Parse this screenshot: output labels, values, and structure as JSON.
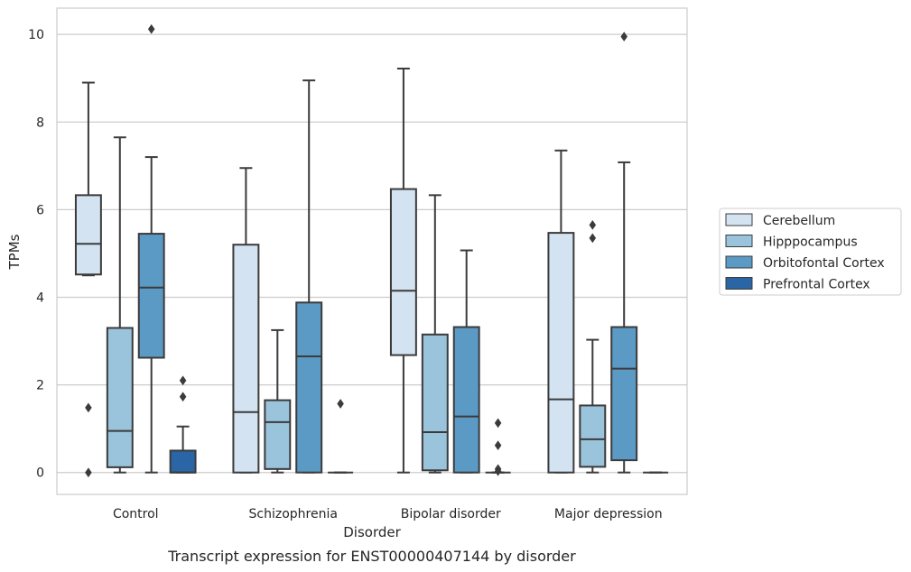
{
  "caption": "Transcript expression for ENST00000407144 by disorder",
  "chart_data": {
    "type": "boxplot",
    "xlabel": "Disorder",
    "ylabel": "TPMs",
    "categories": [
      "Control",
      "Schizophrenia",
      "Bipolar disorder",
      "Major depression"
    ],
    "ylim": [
      -0.5,
      10.6
    ],
    "yticks": [
      0,
      2,
      4,
      6,
      8,
      10
    ],
    "grid": "horizontal",
    "legend": {
      "placement": "right"
    },
    "series": [
      {
        "name": "Cerebellum",
        "color": "#d4e3f2",
        "boxes": [
          {
            "whislo": 4.5,
            "q1": 4.52,
            "med": 5.22,
            "q3": 6.33,
            "whishi": 8.9,
            "fliers": [
              1.48,
              0.0
            ]
          },
          {
            "whislo": 0.0,
            "q1": 0.0,
            "med": 1.38,
            "q3": 5.2,
            "whishi": 6.95,
            "fliers": []
          },
          {
            "whislo": 0.0,
            "q1": 2.68,
            "med": 4.15,
            "q3": 6.47,
            "whishi": 9.22,
            "fliers": []
          },
          {
            "whislo": 0.0,
            "q1": 0.0,
            "med": 1.67,
            "q3": 5.47,
            "whishi": 7.35,
            "fliers": []
          }
        ]
      },
      {
        "name": "Hipppocampus",
        "color": "#9ac3dc",
        "boxes": [
          {
            "whislo": 0.0,
            "q1": 0.12,
            "med": 0.95,
            "q3": 3.3,
            "whishi": 7.65,
            "fliers": []
          },
          {
            "whislo": 0.0,
            "q1": 0.08,
            "med": 1.15,
            "q3": 1.65,
            "whishi": 3.25,
            "fliers": []
          },
          {
            "whislo": 0.0,
            "q1": 0.05,
            "med": 0.92,
            "q3": 3.15,
            "whishi": 6.33,
            "fliers": []
          },
          {
            "whislo": 0.0,
            "q1": 0.13,
            "med": 0.76,
            "q3": 1.53,
            "whishi": 3.03,
            "fliers": [
              5.65,
              5.35
            ]
          }
        ]
      },
      {
        "name": "Orbitofontal Cortex",
        "color": "#5b9ac5",
        "boxes": [
          {
            "whislo": 0.0,
            "q1": 2.62,
            "med": 4.22,
            "q3": 5.45,
            "whishi": 7.2,
            "fliers": [
              10.12
            ]
          },
          {
            "whislo": 0.0,
            "q1": 0.0,
            "med": 2.65,
            "q3": 3.88,
            "whishi": 8.95,
            "fliers": []
          },
          {
            "whislo": 0.0,
            "q1": 0.0,
            "med": 1.28,
            "q3": 3.32,
            "whishi": 5.07,
            "fliers": []
          },
          {
            "whislo": 0.0,
            "q1": 0.28,
            "med": 2.37,
            "q3": 3.32,
            "whishi": 7.08,
            "fliers": [
              9.95
            ]
          }
        ]
      },
      {
        "name": "Prefrontal Cortex",
        "color": "#2a66a5",
        "boxes": [
          {
            "whislo": 0.0,
            "q1": 0.0,
            "med": 0.0,
            "q3": 0.5,
            "whishi": 1.05,
            "fliers": [
              2.1,
              1.73
            ]
          },
          {
            "whislo": 0.0,
            "q1": 0.0,
            "med": 0.0,
            "q3": 0.0,
            "whishi": 0.0,
            "fliers": [
              1.57
            ]
          },
          {
            "whislo": 0.0,
            "q1": 0.0,
            "med": 0.0,
            "q3": 0.0,
            "whishi": 0.0,
            "fliers": [
              1.13,
              0.62,
              0.08,
              0.03
            ]
          },
          {
            "whislo": 0.0,
            "q1": 0.0,
            "med": 0.0,
            "q3": 0.0,
            "whishi": 0.0,
            "fliers": []
          }
        ]
      }
    ]
  }
}
